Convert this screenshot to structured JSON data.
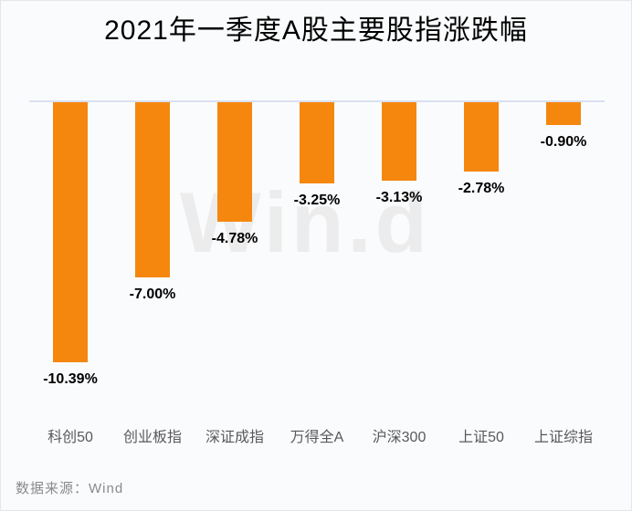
{
  "title": "2021年一季度A股主要股指涨跌幅",
  "watermark": "Win.d",
  "source": "数据来源：Wind",
  "colors": {
    "bar": "#f5870f",
    "baseline": "#d9e0f1",
    "value_text": "#000000",
    "category_text": "#595959",
    "source_text": "#8a8a8a",
    "watermark_text": "#ececec",
    "background": "#fafbfd",
    "title_text": "#000000"
  },
  "chart_data": {
    "type": "bar",
    "title": "2021年一季度A股主要股指涨跌幅",
    "categories": [
      "科创50",
      "创业板指",
      "深证成指",
      "万得全A",
      "沪深300",
      "上证50",
      "上证综指"
    ],
    "values": [
      -10.39,
      -7.0,
      -4.78,
      -3.25,
      -3.13,
      -2.78,
      -0.9
    ],
    "value_labels": [
      "-10.39%",
      "-7.00%",
      "-4.78%",
      "-3.25%",
      "-3.13%",
      "-2.78%",
      "-0.90%"
    ],
    "xlabel": "",
    "ylabel": "",
    "ylim": [
      -11.5,
      0
    ],
    "grid": false,
    "legend": false,
    "bar_color": "#f5870f",
    "source_note": "数据来源：Wind"
  }
}
